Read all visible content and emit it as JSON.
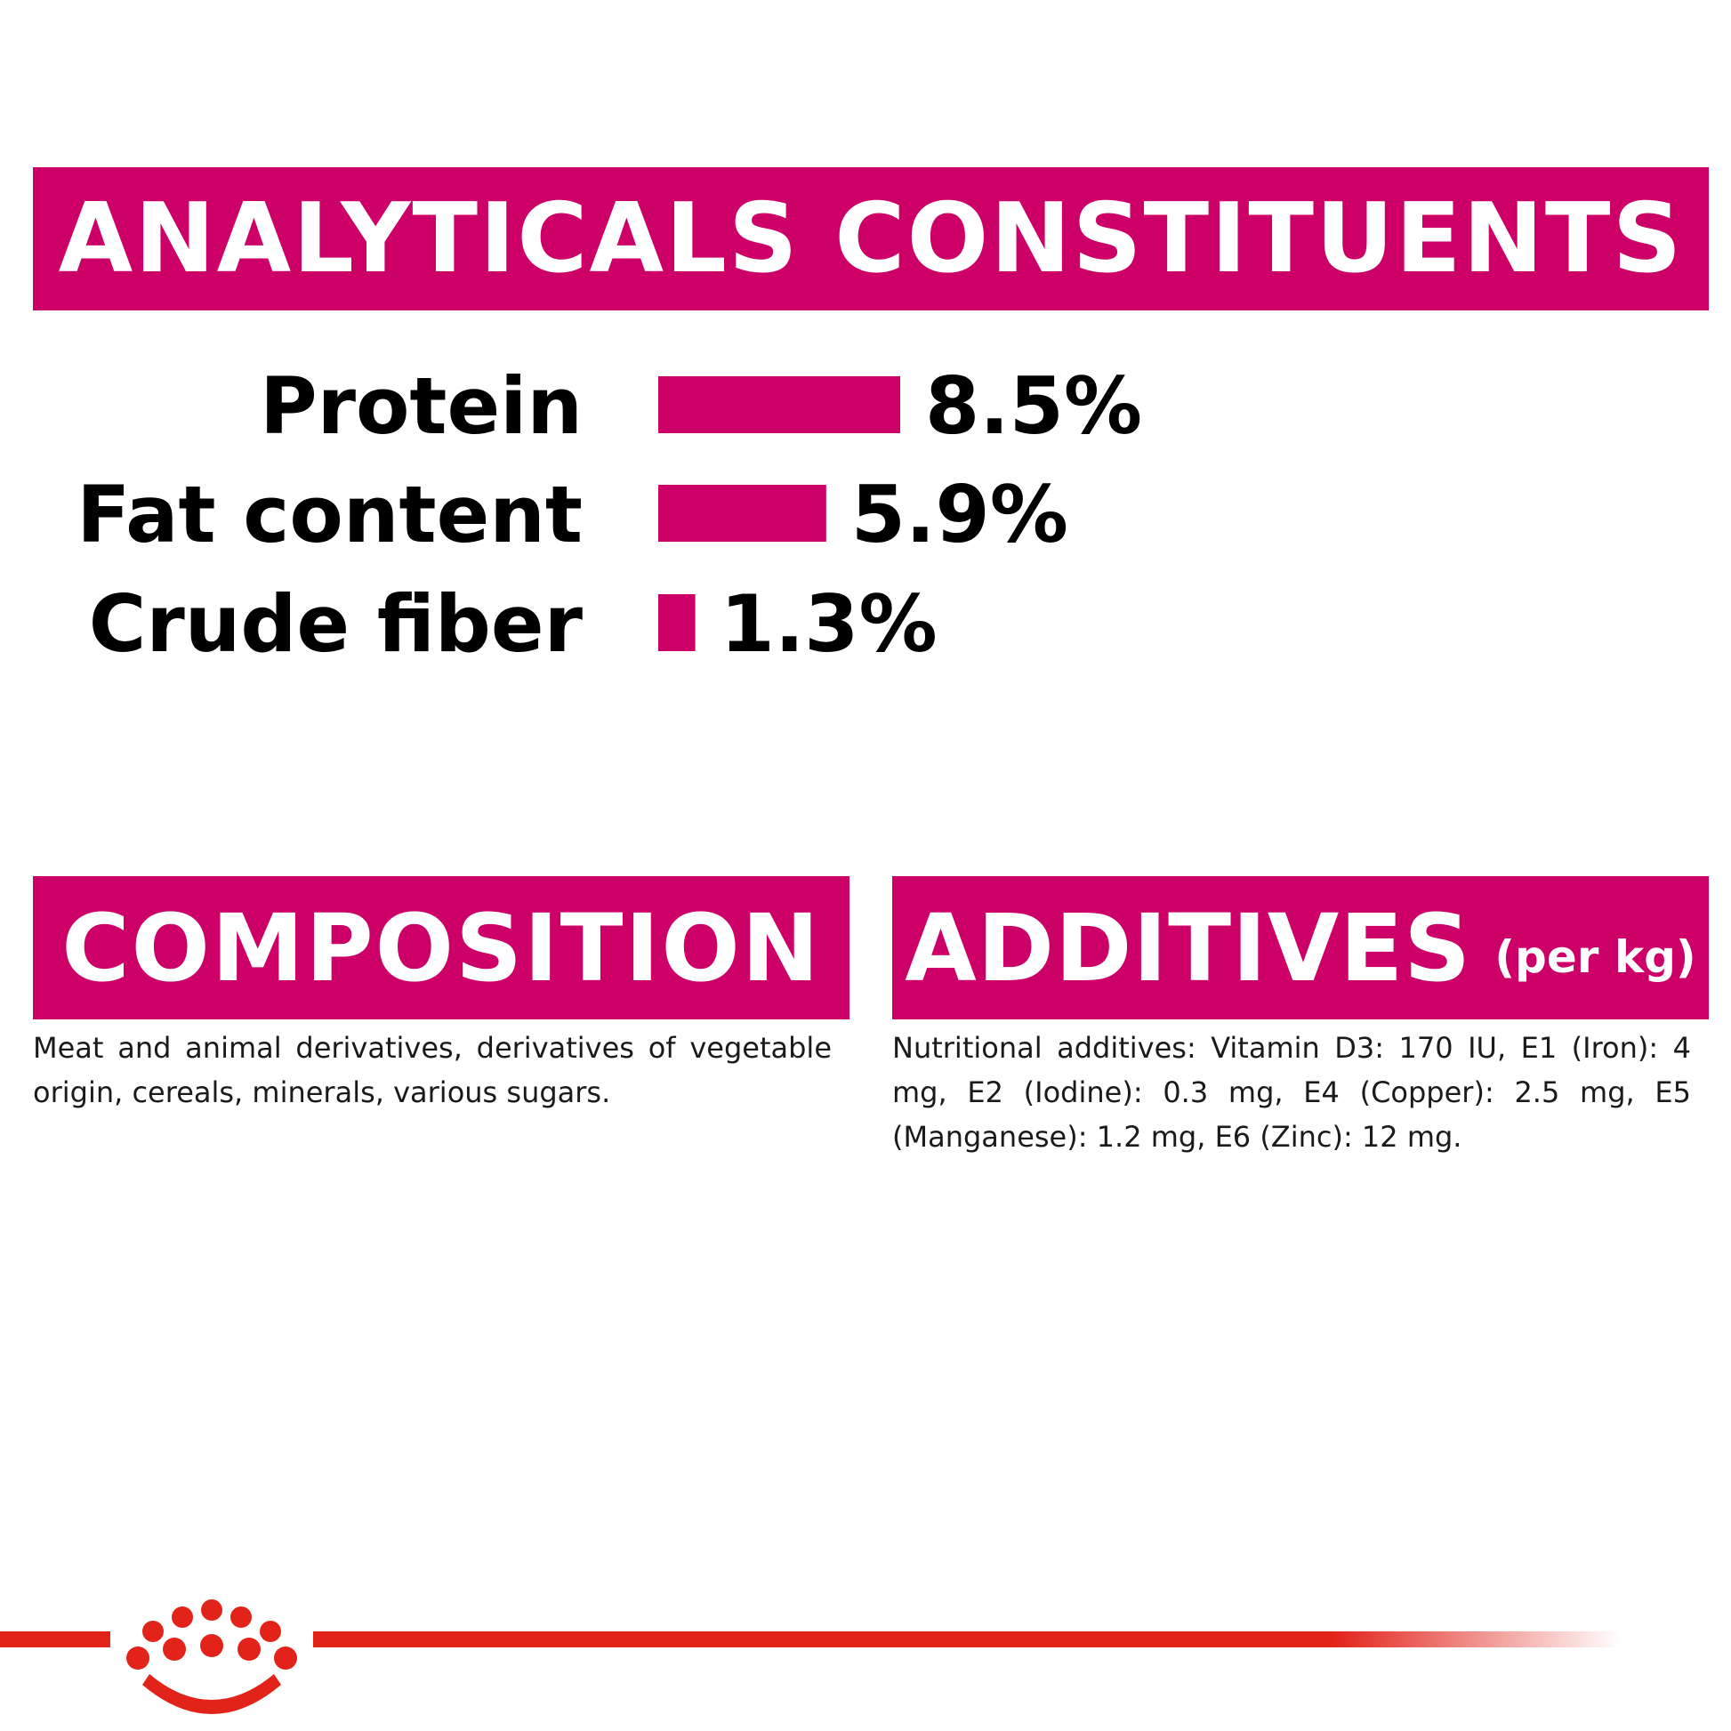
{
  "analytics_heading": "ANALYTICALS CONSTITUENTS",
  "composition_heading": "COMPOSITION",
  "additives_heading": "ADDITIVES",
  "additives_unit": "(per kg)",
  "composition_text": "Meat and animal derivatives, derivatives of vegetable origin, cereals, minerals, various sugars.",
  "additives_text": "Nutritional additives: Vitamin D3: 170 IU, E1 (Iron): 4 mg, E2 (Iodine): 0.3 mg, E4 (Copper): 2.5 mg, E5 (Manganese): 1.2 mg, E6 (Zinc): 12 mg.",
  "colors": {
    "brand_magenta": "#cc0066",
    "footer_red": "#e2231a",
    "text": "#000000"
  },
  "logo": "crown-icon",
  "chart_data": {
    "type": "bar",
    "orientation": "horizontal",
    "title": "ANALYTICALS CONSTITUENTS",
    "categories": [
      "Protein",
      "Fat content",
      "Crude fiber"
    ],
    "values": [
      8.5,
      5.9,
      1.3
    ],
    "value_labels": [
      "8.5%",
      "5.9%",
      "1.3%"
    ],
    "unit": "%",
    "xlim": [
      0,
      8.5
    ],
    "grid": false,
    "color": "#cc0066"
  }
}
